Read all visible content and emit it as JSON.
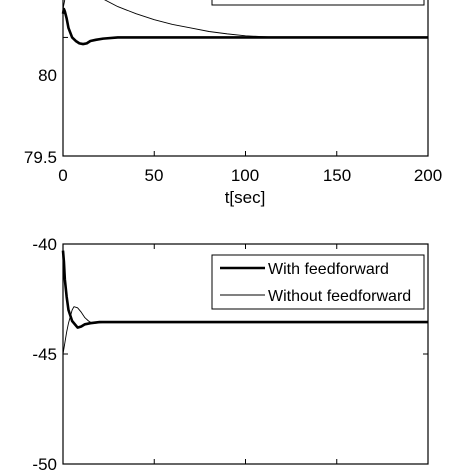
{
  "chart_data": [
    {
      "type": "line",
      "xlabel": "t[sec]",
      "ylabel": "",
      "xlim": [
        0,
        200
      ],
      "ylim": [
        79.5,
        80.2
      ],
      "xticks": [
        "0",
        "50",
        "100",
        "150",
        "200"
      ],
      "yticks": [
        "79.5",
        "80"
      ],
      "grid": false,
      "legend_position": "top-right",
      "series": [
        {
          "name": "With feedforward",
          "x": [
            0,
            0.5,
            1,
            2,
            3,
            5,
            7,
            9,
            11,
            13,
            15,
            18,
            22,
            30,
            50,
            100,
            150,
            200
          ],
          "y": [
            80.1,
            80.12,
            80.11,
            80.08,
            80.04,
            80.0,
            79.985,
            79.975,
            79.972,
            79.975,
            79.985,
            79.99,
            79.995,
            80.0,
            80.0,
            80.0,
            80.0,
            80.0
          ]
        },
        {
          "name": "Without feedforward",
          "x": [
            0,
            1,
            3,
            5,
            10,
            15,
            20,
            30,
            40,
            50,
            60,
            70,
            80,
            90,
            100,
            110,
            117
          ],
          "y": [
            80.12,
            80.16,
            80.2,
            80.23,
            80.22,
            80.2,
            80.17,
            80.13,
            80.1,
            80.075,
            80.055,
            80.04,
            80.025,
            80.015,
            80.007,
            80.003,
            80.0
          ]
        }
      ]
    },
    {
      "type": "line",
      "xlabel": "",
      "ylabel": "",
      "xlim": [
        0,
        200
      ],
      "ylim": [
        -50,
        -40
      ],
      "xticks": [
        "0",
        "50",
        "100",
        "150",
        "200"
      ],
      "yticks": [
        "-40",
        "-45",
        "-50"
      ],
      "grid": false,
      "legend_position": "top-right",
      "legend": [
        "With feedforward",
        "Without feedforward"
      ],
      "series": [
        {
          "name": "With feedforward",
          "x": [
            0,
            0.5,
            1,
            2,
            3,
            5,
            8,
            10,
            12,
            15,
            20,
            25,
            30,
            50,
            100,
            150,
            200
          ],
          "y": [
            -40.3,
            -40.8,
            -41.6,
            -42.4,
            -43.0,
            -43.5,
            -43.8,
            -43.75,
            -43.65,
            -43.6,
            -43.55,
            -43.55,
            -43.55,
            -43.55,
            -43.55,
            -43.55,
            -43.55
          ]
        },
        {
          "name": "Without feedforward",
          "x": [
            0,
            1,
            2,
            3,
            4,
            5,
            6,
            8,
            10,
            12,
            14,
            16,
            18,
            20,
            25,
            30
          ],
          "y": [
            -45.0,
            -44.5,
            -44.0,
            -43.6,
            -43.3,
            -43.0,
            -42.85,
            -42.9,
            -43.1,
            -43.35,
            -43.5,
            -43.6,
            -43.6,
            -43.58,
            -43.55,
            -43.55
          ]
        }
      ]
    }
  ]
}
